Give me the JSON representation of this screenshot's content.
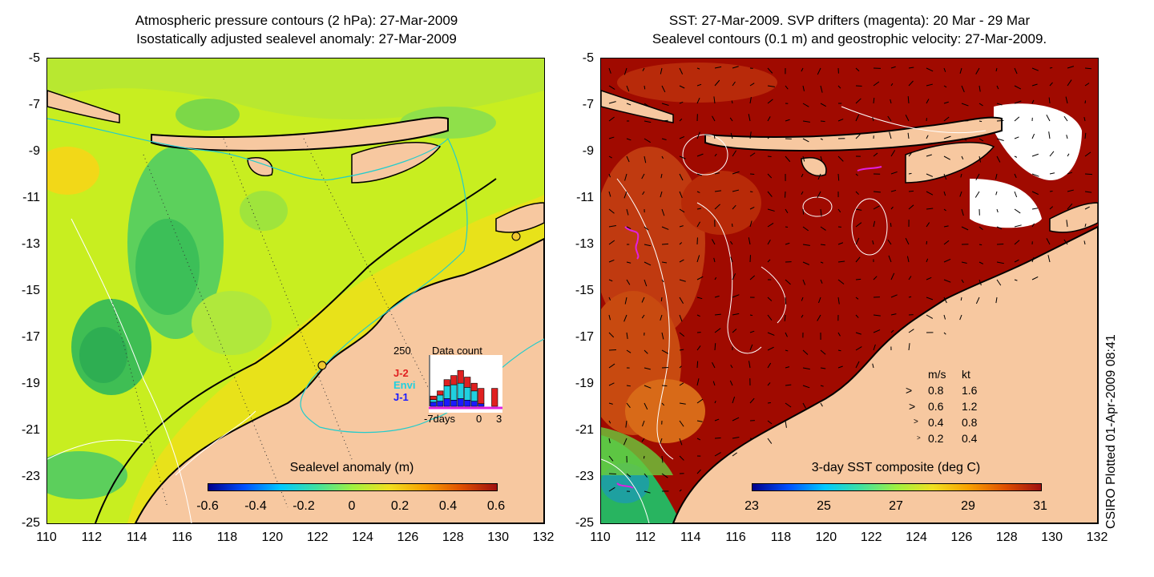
{
  "left_panel": {
    "title_line1": "Atmospheric pressure contours (2 hPa): 27-Mar-2009",
    "title_line2": "Isostatically adjusted sealevel anomaly: 27-Mar-2009",
    "colorbar_title": "Sealevel anomaly (m)",
    "colorbar_ticks": [
      "-0.6",
      "-0.4",
      "-0.2",
      "0",
      "0.2",
      "0.4",
      "0.6"
    ],
    "inset": {
      "max_label": "250",
      "title": "Data count",
      "legend": [
        {
          "label": "J-2",
          "color": "#e02020"
        },
        {
          "label": "Envi",
          "color": "#20d0e0"
        },
        {
          "label": "J-1",
          "color": "#1a1aff"
        }
      ],
      "x_labels": [
        "-7days",
        "0",
        "3"
      ],
      "bars": [
        {
          "j1": 0.08,
          "envi": 0.05,
          "j2": 0.07
        },
        {
          "j1": 0.1,
          "envi": 0.12,
          "j2": 0.08
        },
        {
          "j1": 0.15,
          "envi": 0.25,
          "j2": 0.12
        },
        {
          "j1": 0.12,
          "envi": 0.3,
          "j2": 0.18
        },
        {
          "j1": 0.15,
          "envi": 0.3,
          "j2": 0.25
        },
        {
          "j1": 0.12,
          "envi": 0.25,
          "j2": 0.2
        },
        {
          "j1": 0.1,
          "envi": 0.2,
          "j2": 0.15
        },
        {
          "j1": 0.05,
          "envi": 0.0,
          "j2": 0.3
        },
        {
          "j1": 0.0,
          "envi": 0.0,
          "j2": 0.0
        },
        {
          "j1": 0.0,
          "envi": 0.0,
          "j2": 0.35
        }
      ]
    }
  },
  "right_panel": {
    "title_line1": "SST: 27-Mar-2009. SVP drifters (magenta): 20 Mar - 29 Mar",
    "title_line2": "Sealevel contours (0.1 m) and geostrophic velocity: 27-Mar-2009.",
    "colorbar_title": "3-day SST composite (deg C)",
    "colorbar_ticks": [
      "23",
      "25",
      "27",
      "29",
      "31"
    ],
    "speed_legend": {
      "header_ms": "m/s",
      "header_kt": "kt",
      "rows": [
        {
          "ms": "0.8",
          "kt": "1.6"
        },
        {
          "ms": "0.6",
          "kt": "1.2"
        },
        {
          "ms": "0.4",
          "kt": "0.8"
        },
        {
          "ms": "0.2",
          "kt": "0.4"
        }
      ]
    }
  },
  "axes": {
    "lat_ticks": [
      "-5",
      "-7",
      "-9",
      "-11",
      "-13",
      "-15",
      "-17",
      "-19",
      "-21",
      "-23",
      "-25"
    ],
    "lon_ticks": [
      "110",
      "112",
      "114",
      "116",
      "118",
      "120",
      "122",
      "124",
      "126",
      "128",
      "130",
      "132"
    ]
  },
  "credit": "CSIRO Plotted 01-Apr-2009 08:41",
  "colors": {
    "land": "#f7c8a0",
    "ssl_base": "#c8f01e",
    "sst_base": "#a00a00"
  }
}
